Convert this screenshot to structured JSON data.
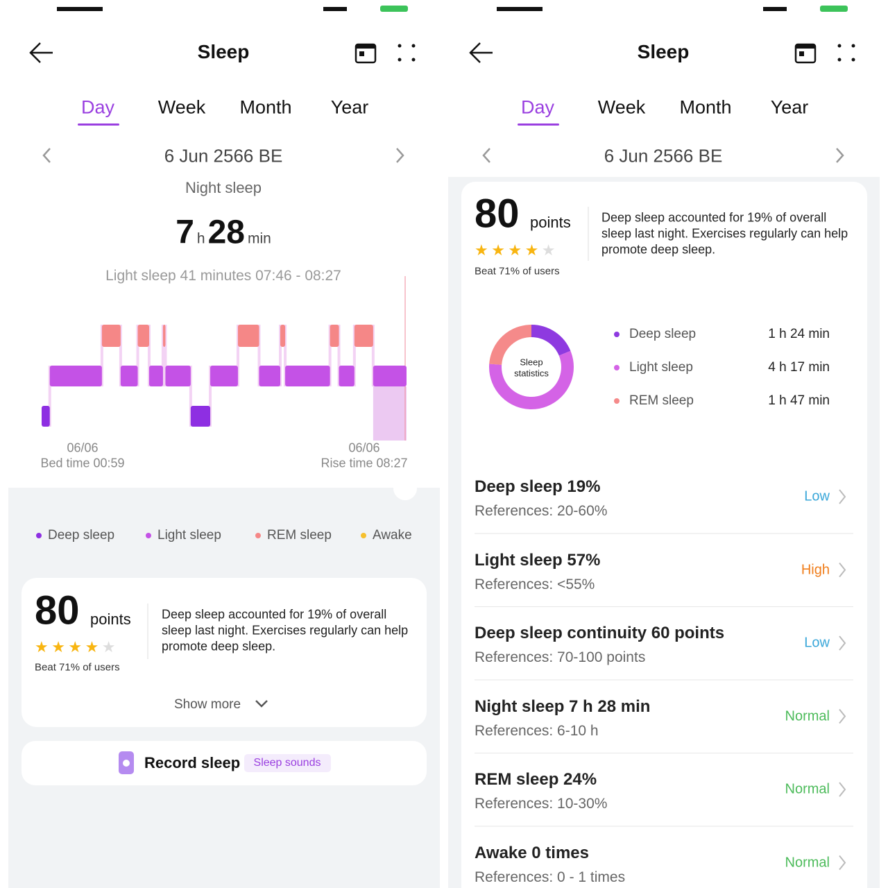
{
  "left": {
    "header": {
      "title": "Sleep"
    },
    "tabs": [
      "Day",
      "Week",
      "Month",
      "Year"
    ],
    "date": "6 Jun 2566 BE",
    "section": "Night sleep",
    "duration": {
      "hours": 7,
      "h": "h",
      "minutes": 28,
      "min": "min"
    },
    "selection": "Light sleep 41 minutes 07:46 - 08:27",
    "hypnogram": {
      "segments": [
        {
          "stage": 0,
          "minutes": 10
        },
        {
          "stage": 1,
          "minutes": 64
        },
        {
          "stage": 2,
          "minutes": 23
        },
        {
          "stage": 1,
          "minutes": 21
        },
        {
          "stage": 2,
          "minutes": 14
        },
        {
          "stage": 1,
          "minutes": 17
        },
        {
          "stage": 2,
          "minutes": 3
        },
        {
          "stage": 1,
          "minutes": 31
        },
        {
          "stage": 0,
          "minutes": 24
        },
        {
          "stage": 1,
          "minutes": 34
        },
        {
          "stage": 2,
          "minutes": 26
        },
        {
          "stage": 1,
          "minutes": 26
        },
        {
          "stage": 2,
          "minutes": 6
        },
        {
          "stage": 1,
          "minutes": 55
        },
        {
          "stage": 2,
          "minutes": 11
        },
        {
          "stage": 1,
          "minutes": 19
        },
        {
          "stage": 2,
          "minutes": 23
        },
        {
          "stage": 1,
          "minutes": 41
        }
      ]
    },
    "start": {
      "date": "06/06",
      "label": "Bed time 00:59"
    },
    "end": {
      "date": "06/06",
      "label": "Rise time 08:27"
    },
    "legend": [
      {
        "label": "Deep sleep",
        "color": "#8e2fe2"
      },
      {
        "label": "Light sleep",
        "color": "#c452e6"
      },
      {
        "label": "REM sleep",
        "color": "#f58787"
      },
      {
        "label": "Awake",
        "color": "#f6c02e"
      }
    ],
    "score": {
      "value": 80,
      "unit": "points",
      "rating": 4,
      "rating_max": 5,
      "beat": "Beat 71% of users",
      "text": "Deep sleep accounted for 19% of overall sleep last night. Exercises regularly can help promote deep sleep."
    },
    "show_more": "Show more",
    "record": {
      "label": "Record sleep",
      "badge": "Sleep sounds"
    }
  },
  "right": {
    "header": {
      "title": "Sleep"
    },
    "tabs": [
      "Day",
      "Week",
      "Month",
      "Year"
    ],
    "date": "6 Jun 2566 BE",
    "score": {
      "value": 80,
      "unit": "points",
      "rating": 4,
      "rating_max": 5,
      "beat": "Beat 71% of users",
      "text": "Deep sleep accounted for 19% of overall sleep last night. Exercises regularly can help promote deep sleep."
    },
    "donut": {
      "center": [
        "Sleep",
        "statistics"
      ],
      "items": [
        {
          "label": "Deep sleep",
          "color": "#8e3ae0",
          "value": 84,
          "value_label": "1 h 24 min"
        },
        {
          "label": "Light sleep",
          "color": "#d463e6",
          "value": 257,
          "value_label": "4 h 17 min"
        },
        {
          "label": "REM sleep",
          "color": "#f58a8a",
          "value": 107,
          "value_label": "1 h 47 min"
        }
      ]
    },
    "indicators": [
      {
        "title": "Deep sleep 19%",
        "reference": "References: 20-60%",
        "status": "Low",
        "color": "#3aa7d9"
      },
      {
        "title": "Light sleep 57%",
        "reference": "References: <55%",
        "status": "High",
        "color": "#f07d1a"
      },
      {
        "title": "Deep sleep continuity 60 points",
        "reference": "References: 70-100 points",
        "status": "Low",
        "color": "#3aa7d9"
      },
      {
        "title": "Night sleep 7 h 28 min",
        "reference": "References: 6-10 h",
        "status": "Normal",
        "color": "#4cbb5a"
      },
      {
        "title": "REM sleep 24%",
        "reference": "References: 10-30%",
        "status": "Normal",
        "color": "#4cbb5a"
      },
      {
        "title": "Awake 0 times",
        "reference": "References: 0 - 1 times",
        "status": "Normal",
        "color": "#4cbb5a"
      }
    ]
  }
}
